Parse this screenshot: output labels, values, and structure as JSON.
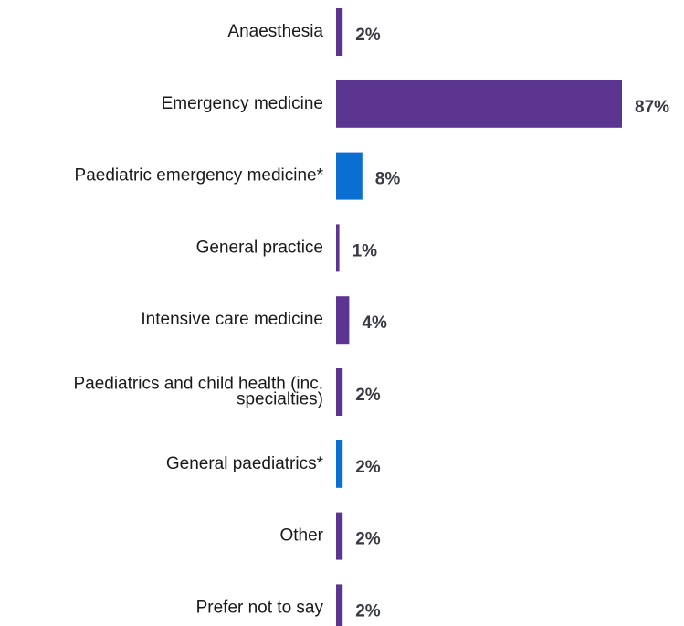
{
  "chart_data": {
    "type": "bar",
    "orientation": "horizontal",
    "title": "",
    "xlabel": "",
    "ylabel": "",
    "xlim": [
      0,
      87
    ],
    "grid": false,
    "legend": "none",
    "categories": [
      "Anaesthesia",
      "Emergency medicine",
      "Paediatric emergency medicine*",
      "General practice",
      "Intensive care medicine",
      "Paediatrics and child health (inc. specialties)",
      "General paediatrics*",
      "Other",
      "Prefer not to say"
    ],
    "category_lines": [
      [
        "Anaesthesia"
      ],
      [
        "Emergency medicine"
      ],
      [
        "Paediatric emergency medicine*"
      ],
      [
        "General practice"
      ],
      [
        "Intensive care medicine"
      ],
      [
        "Paediatrics and child health (inc.",
        "specialties)"
      ],
      [
        "General paediatrics*"
      ],
      [
        "Other"
      ],
      [
        "Prefer not to say"
      ]
    ],
    "values": [
      2,
      87,
      8,
      1,
      4,
      2,
      2,
      2,
      2
    ],
    "value_labels": [
      "2%",
      "87%",
      "8%",
      "1%",
      "4%",
      "2%",
      "2%",
      "2%",
      "2%"
    ],
    "bar_colors": [
      "#5b3590",
      "#5b3590",
      "#0b6ed1",
      "#5b3590",
      "#5b3590",
      "#5b3590",
      "#0b6ed1",
      "#5b3590",
      "#5b3590"
    ]
  }
}
